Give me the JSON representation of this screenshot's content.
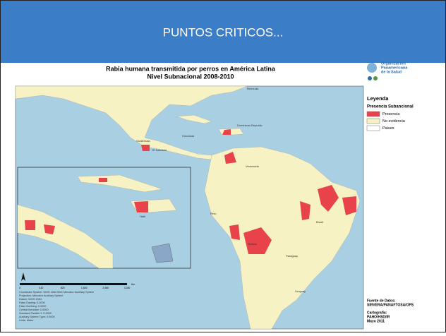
{
  "header": {
    "title": "PUNTOS CRITICOS..."
  },
  "map": {
    "title_lines": [
      "Rabia humana transmitida por perros en América Latina",
      "Nivel Subnacional 2008-2010"
    ],
    "labels": [
      "Bermuda",
      "Honduras",
      "Guatemala",
      "El Salvador",
      "Dominican Republic",
      "Venezuela",
      "Peru",
      "Brazil",
      "Bolivia",
      "Paraguay",
      "Uruguay",
      "Haiti"
    ]
  },
  "logo": {
    "lines": [
      "Organización",
      "Panamericana",
      "de la Salud"
    ]
  },
  "legend": {
    "title": "Leyenda",
    "subtitle": "Presencia Subancional",
    "items": [
      {
        "label": "Presencia",
        "color": "#e8434b"
      },
      {
        "label": "No evidencia",
        "color": "#f6f2c4"
      },
      {
        "label": "Paises",
        "color": "#ffffff"
      }
    ]
  },
  "scale": {
    "ticks": [
      "0",
      "410",
      "820",
      "1,640",
      "2,460",
      "3,280"
    ],
    "unit": "Km"
  },
  "notes": [
    "Coordinate System: WGS 1984 Web Mercator Auxiliary Sphere",
    "Projection: Mercator Auxiliary Sphere",
    "Datum: WGS 1984",
    "False Easting: 0.0000",
    "False Northing: 0.0000",
    "Central Meridian: 0.0000",
    "Standard Parallel 1: 0.0000",
    "Auxiliary Sphere Type: 0.0000",
    "Units: Meter"
  ],
  "sources": [
    "Fuente de Datos:",
    "SIRVERA/PANAFTOSA/OPS",
    "Cartografía:",
    "PAHO/HSD/IR",
    "Mayo 2011"
  ]
}
